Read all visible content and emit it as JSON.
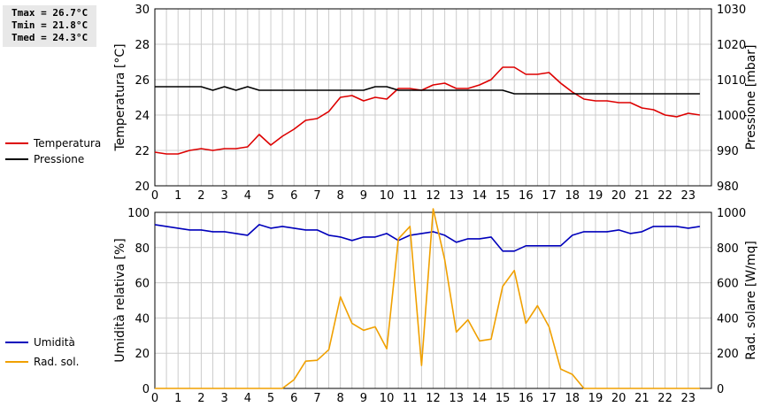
{
  "stats": {
    "tmax": "Tmax = 26.7°C",
    "tmin": "Tmin = 21.8°C",
    "tmed": "Tmed = 24.3°C"
  },
  "colors": {
    "temperature": "#dd0000",
    "pressure": "#000000",
    "humidity": "#0000bb",
    "radiation": "#f0a000",
    "grid": "#cccccc"
  },
  "chart_data": [
    {
      "type": "line",
      "legend": [
        "Temperatura",
        "Pressione"
      ],
      "legend_position": "left",
      "grid": true,
      "xlim": [
        0,
        24
      ],
      "x_ticks": [
        0,
        1,
        2,
        3,
        4,
        5,
        6,
        7,
        8,
        9,
        10,
        11,
        12,
        13,
        14,
        15,
        16,
        17,
        18,
        19,
        20,
        21,
        22,
        23
      ],
      "ylabel_left": "Temperatura [°C]",
      "ylim_left": [
        20,
        30
      ],
      "y_ticks_left": [
        20,
        22,
        24,
        26,
        28,
        30
      ],
      "ylabel_right": "Pressione [mbar]",
      "ylim_right": [
        980,
        1030
      ],
      "y_ticks_right": [
        980,
        990,
        1000,
        1010,
        1020,
        1030
      ],
      "series": [
        {
          "name": "Temperatura",
          "axis": "left",
          "color": "#dd0000",
          "x": [
            0,
            0.5,
            1,
            1.5,
            2,
            2.5,
            3,
            3.5,
            4,
            4.5,
            5,
            5.5,
            6,
            6.5,
            7,
            7.5,
            8,
            8.5,
            9,
            9.5,
            10,
            10.5,
            11,
            11.5,
            12,
            12.5,
            13,
            13.5,
            14,
            14.5,
            15,
            15.5,
            16,
            16.5,
            17,
            17.5,
            18,
            18.5,
            19,
            19.5,
            20,
            20.5,
            21,
            21.5,
            22,
            22.5,
            23,
            23.5
          ],
          "values": [
            21.9,
            21.8,
            21.8,
            22.0,
            22.1,
            22.0,
            22.1,
            22.1,
            22.2,
            22.9,
            22.3,
            22.8,
            23.2,
            23.7,
            23.8,
            24.2,
            25.0,
            25.1,
            24.8,
            25.0,
            24.9,
            25.5,
            25.5,
            25.4,
            25.7,
            25.8,
            25.5,
            25.5,
            25.7,
            26.0,
            26.7,
            26.7,
            26.3,
            26.3,
            26.4,
            25.8,
            25.3,
            24.9,
            24.8,
            24.8,
            24.7,
            24.7,
            24.4,
            24.3,
            24.0,
            23.9,
            24.1,
            24.0
          ]
        },
        {
          "name": "Pressione",
          "axis": "right",
          "color": "#000000",
          "x": [
            0,
            0.5,
            1,
            1.5,
            2,
            2.5,
            3,
            3.5,
            4,
            4.5,
            5,
            5.5,
            6,
            6.5,
            7,
            7.5,
            8,
            8.5,
            9,
            9.5,
            10,
            10.5,
            11,
            11.5,
            12,
            12.5,
            13,
            13.5,
            14,
            14.5,
            15,
            15.5,
            16,
            16.5,
            17,
            17.5,
            18,
            18.5,
            19,
            19.5,
            20,
            20.5,
            21,
            21.5,
            22,
            22.5,
            23,
            23.5
          ],
          "values": [
            1008,
            1008,
            1008,
            1008,
            1008,
            1007,
            1008,
            1007,
            1008,
            1007,
            1007,
            1007,
            1007,
            1007,
            1007,
            1007,
            1007,
            1007,
            1007,
            1008,
            1008,
            1007,
            1007,
            1007,
            1007,
            1007,
            1007,
            1007,
            1007,
            1007,
            1007,
            1006,
            1006,
            1006,
            1006,
            1006,
            1006,
            1006,
            1006,
            1006,
            1006,
            1006,
            1006,
            1006,
            1006,
            1006,
            1006,
            1006
          ]
        }
      ]
    },
    {
      "type": "line",
      "legend": [
        "Umidità",
        "Rad. sol."
      ],
      "legend_position": "left",
      "grid": true,
      "xlim": [
        0,
        24
      ],
      "x_ticks": [
        0,
        1,
        2,
        3,
        4,
        5,
        6,
        7,
        8,
        9,
        10,
        11,
        12,
        13,
        14,
        15,
        16,
        17,
        18,
        19,
        20,
        21,
        22,
        23
      ],
      "ylabel_left": "Umidità relativa [%]",
      "ylim_left": [
        0,
        100
      ],
      "y_ticks_left": [
        0,
        20,
        40,
        60,
        80,
        100
      ],
      "ylabel_right": "Rad. solare [W/mq]",
      "ylim_right": [
        0,
        1000
      ],
      "y_ticks_right": [
        0,
        200,
        400,
        600,
        800,
        1000
      ],
      "series": [
        {
          "name": "Umidità",
          "axis": "left",
          "color": "#0000bb",
          "x": [
            0,
            0.5,
            1,
            1.5,
            2,
            2.5,
            3,
            3.5,
            4,
            4.5,
            5,
            5.5,
            6,
            6.5,
            7,
            7.5,
            8,
            8.5,
            9,
            9.5,
            10,
            10.5,
            11,
            11.5,
            12,
            12.5,
            13,
            13.5,
            14,
            14.5,
            15,
            15.5,
            16,
            16.5,
            17,
            17.5,
            18,
            18.5,
            19,
            19.5,
            20,
            20.5,
            21,
            21.5,
            22,
            22.5,
            23,
            23.5
          ],
          "values": [
            93,
            92,
            91,
            90,
            90,
            89,
            89,
            88,
            87,
            93,
            91,
            92,
            91,
            90,
            90,
            87,
            86,
            84,
            86,
            86,
            88,
            84,
            87,
            88,
            89,
            87,
            83,
            85,
            85,
            86,
            78,
            78,
            81,
            81,
            81,
            81,
            87,
            89,
            89,
            89,
            90,
            88,
            89,
            92,
            92,
            92,
            91,
            92
          ]
        },
        {
          "name": "Rad. sol.",
          "axis": "right",
          "color": "#f0a000",
          "x": [
            0,
            0.5,
            1,
            1.5,
            2,
            2.5,
            3,
            3.5,
            4,
            4.5,
            5,
            5.5,
            6,
            6.5,
            7,
            7.5,
            8,
            8.5,
            9,
            9.5,
            10,
            10.5,
            11,
            11.5,
            12,
            12.5,
            13,
            13.5,
            14,
            14.5,
            15,
            15.5,
            16,
            16.5,
            17,
            17.5,
            18,
            18.5,
            19,
            19.5,
            20,
            20.5,
            21,
            21.5,
            22,
            22.5,
            23,
            23.5
          ],
          "values": [
            0,
            0,
            0,
            0,
            0,
            0,
            0,
            0,
            0,
            0,
            0,
            0,
            50,
            155,
            160,
            220,
            520,
            370,
            330,
            350,
            225,
            850,
            920,
            130,
            1020,
            730,
            320,
            390,
            270,
            280,
            580,
            670,
            370,
            470,
            350,
            110,
            80,
            0,
            0,
            0,
            0,
            0,
            0,
            0,
            0,
            0,
            0,
            0
          ]
        }
      ]
    }
  ]
}
